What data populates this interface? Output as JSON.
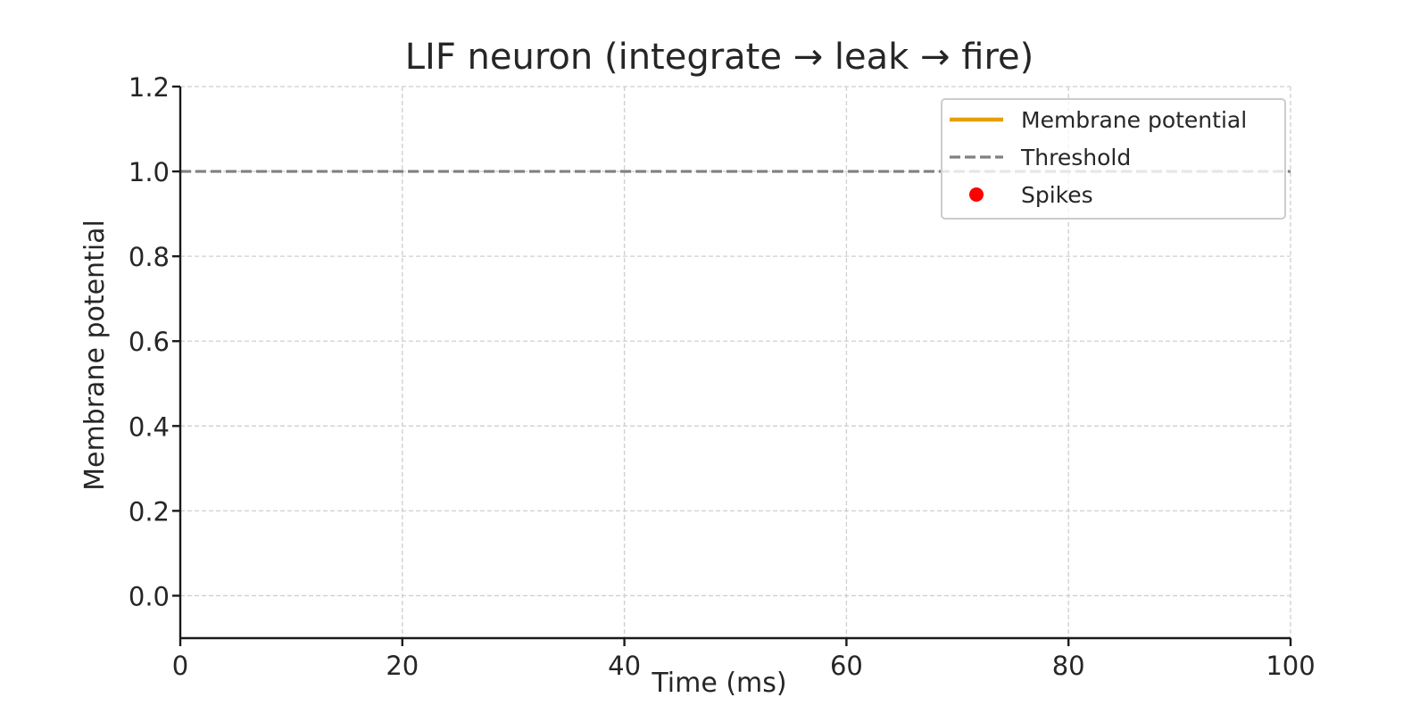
{
  "chart_data": {
    "type": "line",
    "title": "LIF neuron (integrate → leak → fire)",
    "xlabel": "Time (ms)",
    "ylabel": "Membrane potential",
    "xlim": [
      0,
      100
    ],
    "ylim": [
      -0.1,
      1.2
    ],
    "xticks": [
      0,
      20,
      40,
      60,
      80,
      100
    ],
    "xtick_labels": [
      "0",
      "20",
      "40",
      "60",
      "80",
      "100"
    ],
    "yticks": [
      0.0,
      0.2,
      0.4,
      0.6,
      0.8,
      1.0,
      1.2
    ],
    "ytick_labels": [
      "0.0",
      "0.2",
      "0.4",
      "0.6",
      "0.8",
      "1.0",
      "1.2"
    ],
    "grid": true,
    "legend_position": "top-right",
    "series": [
      {
        "name": "Membrane potential",
        "kind": "line",
        "color": "#e69f00",
        "x": [],
        "y": []
      },
      {
        "name": "Threshold",
        "kind": "hline",
        "style": "dashed",
        "color": "#808080",
        "y": 1.0
      },
      {
        "name": "Spikes",
        "kind": "scatter",
        "color": "#ff0000",
        "x": [],
        "y": []
      }
    ]
  }
}
